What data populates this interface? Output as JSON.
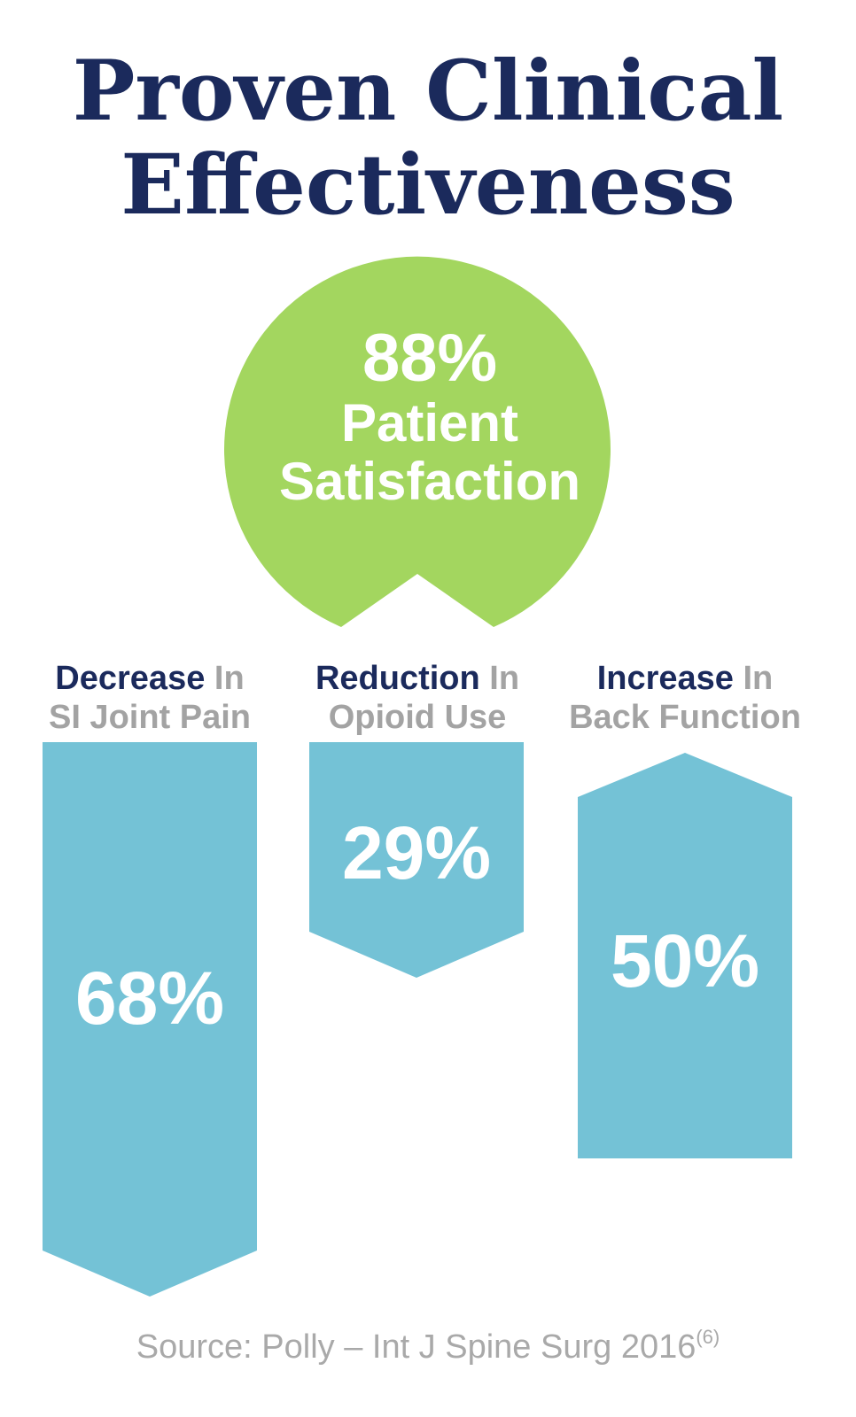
{
  "title": {
    "line1": "Proven Clinical",
    "line2": "Effectiveness"
  },
  "satisfaction": {
    "value": "88%",
    "label_line1": "Patient",
    "label_line2": "Satisfaction"
  },
  "columns": [
    {
      "highlight": "Decrease",
      "connector": "In",
      "subject": "SI Joint Pain",
      "value": "68%"
    },
    {
      "highlight": "Reduction",
      "connector": "In",
      "subject": "Opioid Use",
      "value": "29%"
    },
    {
      "highlight": "Increase",
      "connector": "In",
      "subject": "Back Function",
      "value": "50%"
    }
  ],
  "source": {
    "text": "Source: Polly – Int J Spine Surg 2016",
    "ref": "(6)"
  },
  "colors": {
    "navy": "#1b2a5c",
    "green": "#a3d65f",
    "blue": "#74c2d6",
    "grey": "#a3a3a3"
  }
}
